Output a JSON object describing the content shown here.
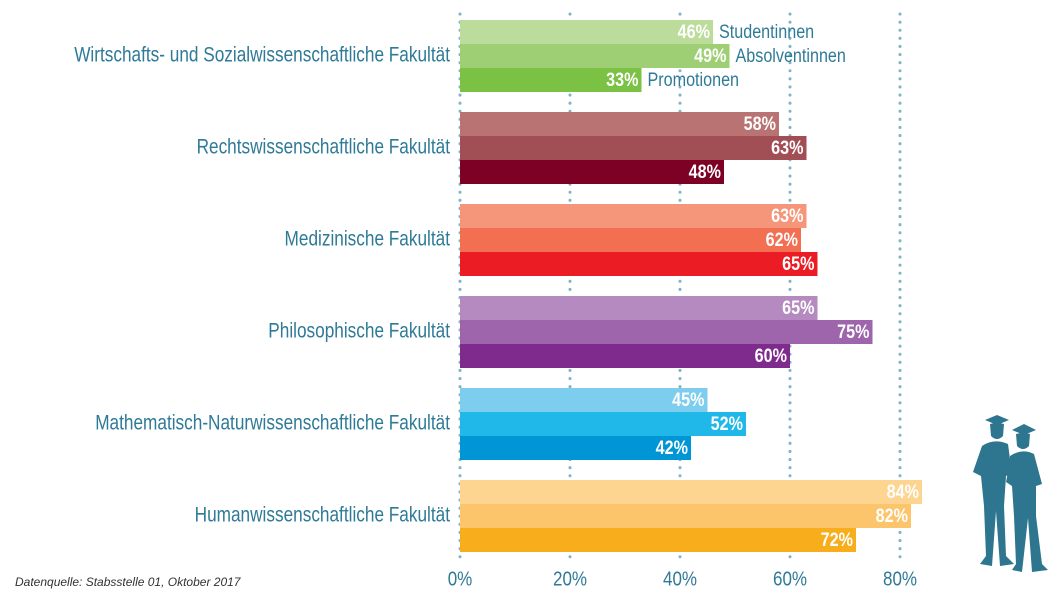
{
  "chart_data": {
    "type": "bar",
    "orientation": "horizontal",
    "categories": [
      "Wirtschafts- und Sozialwissenschaftliche Fakultät",
      "Rechtswissenschaftliche Fakultät",
      "Medizinische Fakultät",
      "Philosophische Fakultät",
      "Mathematisch-Naturwissenschaftliche Fakultät",
      "Humanwissenschaftliche Fakultät"
    ],
    "series": [
      {
        "name": "Studentinnen",
        "values": [
          46,
          58,
          63,
          65,
          45,
          84
        ],
        "value_labels": [
          "46%",
          "58%",
          "63%",
          "65%",
          "45%",
          "84%"
        ],
        "colors": [
          "#bcdc9b",
          "#b87372",
          "#f5967a",
          "#b58ac0",
          "#7dcdef",
          "#fdd591"
        ]
      },
      {
        "name": "Absolventinnen",
        "values": [
          49,
          63,
          62,
          75,
          52,
          82
        ],
        "value_labels": [
          "49%",
          "63%",
          "62%",
          "75%",
          "52%",
          "82%"
        ],
        "colors": [
          "#9fcf74",
          "#a24e55",
          "#f26f51",
          "#9e64ac",
          "#20b8e8",
          "#fcc46b"
        ]
      },
      {
        "name": "Promotionen",
        "values": [
          33,
          48,
          65,
          60,
          42,
          72
        ],
        "value_labels": [
          "33%",
          "48%",
          "65%",
          "60%",
          "42%",
          "72%"
        ],
        "colors": [
          "#7bc143",
          "#7d0025",
          "#ec1c24",
          "#7f2b8d",
          "#0096d6",
          "#f8ad1c"
        ]
      }
    ],
    "xlim": [
      0,
      100
    ],
    "xticks": [
      {
        "value": 0,
        "label": "0%"
      },
      {
        "value": 20,
        "label": "20%"
      },
      {
        "value": 40,
        "label": "40%"
      },
      {
        "value": 60,
        "label": "60%"
      },
      {
        "value": 80,
        "label": "80%"
      }
    ],
    "grid": true,
    "source": "Datenquelle: Stabsstelle 01, Oktober 2017"
  }
}
